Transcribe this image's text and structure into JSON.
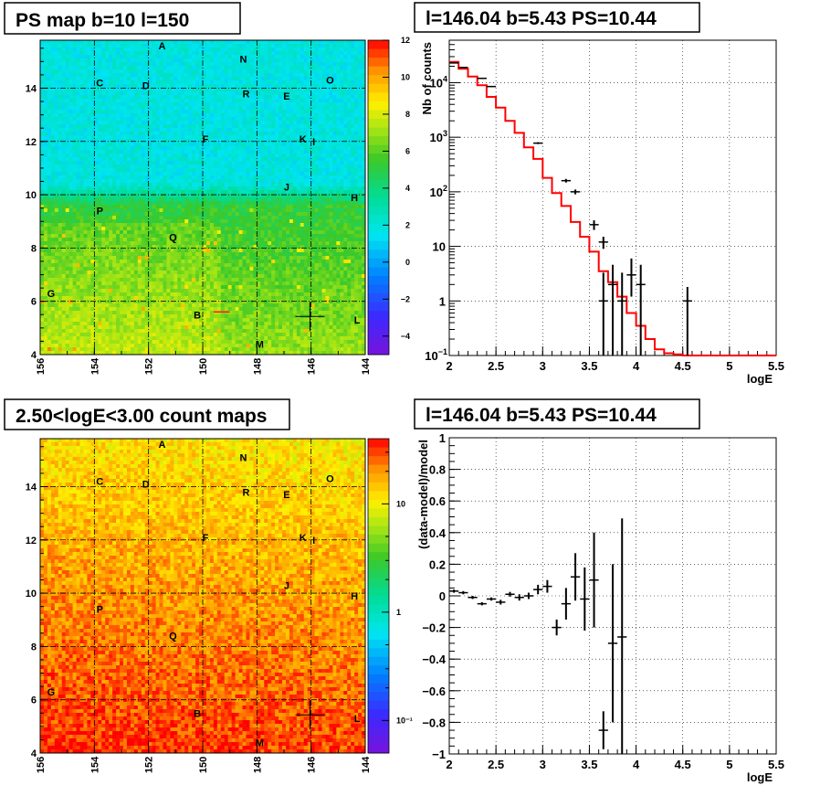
{
  "chart_data": [
    {
      "type": "heatmap",
      "title": "PS map b=10 l=150",
      "xlim": [
        156,
        144
      ],
      "ylim": [
        4,
        15.8
      ],
      "x_ticks": [
        "156",
        "154",
        "152",
        "150",
        "148",
        "146",
        "144"
      ],
      "y_ticks": [
        "4",
        "6",
        "8",
        "10",
        "12",
        "14"
      ],
      "colorbar": {
        "scale": "linear",
        "range": [
          -5,
          12
        ],
        "ticks": [
          "12",
          "10",
          "8",
          "6",
          "4",
          "2",
          "0",
          "−2",
          "−4"
        ]
      },
      "grid": "dash-dot",
      "source_labels": [
        {
          "name": "A",
          "l": 151.5,
          "b": 15.6
        },
        {
          "name": "N",
          "l": 148.5,
          "b": 15.1
        },
        {
          "name": "O",
          "l": 145.3,
          "b": 14.3
        },
        {
          "name": "C",
          "l": 153.8,
          "b": 14.2
        },
        {
          "name": "D",
          "l": 152.1,
          "b": 14.1
        },
        {
          "name": "R",
          "l": 148.4,
          "b": 13.8
        },
        {
          "name": "E",
          "l": 146.9,
          "b": 13.7
        },
        {
          "name": "F",
          "l": 149.9,
          "b": 12.1
        },
        {
          "name": "K",
          "l": 146.3,
          "b": 12.1
        },
        {
          "name": "I",
          "l": 145.9,
          "b": 12.0
        },
        {
          "name": "J",
          "l": 146.9,
          "b": 10.3
        },
        {
          "name": "H",
          "l": 144.4,
          "b": 9.9
        },
        {
          "name": "P",
          "l": 153.8,
          "b": 9.4
        },
        {
          "name": "Q",
          "l": 151.1,
          "b": 8.4
        },
        {
          "name": "G",
          "l": 155.6,
          "b": 6.3
        },
        {
          "name": "B",
          "l": 150.2,
          "b": 5.5
        },
        {
          "name": "L",
          "l": 144.3,
          "b": 5.3
        },
        {
          "name": "M",
          "l": 147.9,
          "b": 4.4
        }
      ],
      "marker": {
        "l": 146.04,
        "b": 5.43
      }
    },
    {
      "type": "line",
      "title": "l=146.04 b=5.43 PS=10.44",
      "xlabel": "logE",
      "ylabel": "Nb of counts",
      "xlim": [
        2,
        5.5
      ],
      "ylim": [
        0.1,
        60000
      ],
      "yscale": "log",
      "x_ticks": [
        "2",
        "2.5",
        "3",
        "3.5",
        "4",
        "4.5",
        "5",
        "5.5"
      ],
      "grid": true,
      "series": [
        {
          "type": "step",
          "color": "#ff0000",
          "x": [
            2.0,
            2.1,
            2.2,
            2.3,
            2.4,
            2.5,
            2.6,
            2.7,
            2.8,
            2.9,
            3.0,
            3.1,
            3.2,
            3.3,
            3.4,
            3.5,
            3.6,
            3.7,
            3.8,
            3.9,
            4.0,
            4.1,
            4.2,
            4.3,
            4.4,
            4.5,
            5.5
          ],
          "values": [
            24000,
            18000,
            13000,
            9000,
            5500,
            3500,
            2000,
            1200,
            650,
            400,
            180,
            95,
            55,
            28,
            15,
            8,
            3.5,
            2.2,
            1.2,
            0.6,
            0.35,
            0.2,
            0.13,
            0.11,
            0.105,
            0.1,
            0.1
          ]
        },
        {
          "type": "errorbar",
          "color": "#000000",
          "points": [
            {
              "x": 2.05,
              "y": 23000,
              "lo": 22600,
              "hi": 23400
            },
            {
              "x": 2.15,
              "y": 19000,
              "lo": 18700,
              "hi": 19300
            },
            {
              "x": 2.35,
              "y": 12000,
              "lo": 11800,
              "hi": 12200
            },
            {
              "x": 2.45,
              "y": 8500,
              "lo": 8300,
              "hi": 8700
            },
            {
              "x": 2.95,
              "y": 780,
              "lo": 750,
              "hi": 810
            },
            {
              "x": 3.25,
              "y": 160,
              "lo": 148,
              "hi": 172
            },
            {
              "x": 3.35,
              "y": 100,
              "lo": 90,
              "hi": 110
            },
            {
              "x": 3.55,
              "y": 25,
              "lo": 20,
              "hi": 30
            },
            {
              "x": 3.65,
              "y": 12,
              "lo": 9,
              "hi": 15
            },
            {
              "x": 3.65,
              "y": 1,
              "lo": 0.1,
              "hi": 3.3
            },
            {
              "x": 3.75,
              "y": 2,
              "lo": 0.1,
              "hi": 4.6
            },
            {
              "x": 3.85,
              "y": 1,
              "lo": 0.1,
              "hi": 3.3
            },
            {
              "x": 3.95,
              "y": 3,
              "lo": 1.2,
              "hi": 6
            },
            {
              "x": 4.05,
              "y": 2,
              "lo": 0.1,
              "hi": 4.6
            },
            {
              "x": 4.55,
              "y": 1,
              "lo": 0.1,
              "hi": 1.8
            }
          ]
        }
      ]
    },
    {
      "type": "heatmap",
      "title": "2.50<logE<3.00 count maps",
      "xlim": [
        156,
        144
      ],
      "ylim": [
        4,
        15.8
      ],
      "x_ticks": [
        "156",
        "154",
        "152",
        "150",
        "148",
        "146",
        "144"
      ],
      "y_ticks": [
        "4",
        "6",
        "8",
        "10",
        "12",
        "14"
      ],
      "colorbar": {
        "scale": "log",
        "range": [
          0.05,
          40
        ],
        "ticks": [
          "10",
          "1",
          "10⁻¹"
        ]
      },
      "grid": "dash-dot"
    },
    {
      "type": "scatter",
      "title": "l=146.04 b=5.43 PS=10.44",
      "xlabel": "logE",
      "ylabel": "(data-model)/model",
      "xlim": [
        2,
        5.5
      ],
      "ylim": [
        -1,
        1
      ],
      "x_ticks": [
        "2",
        "2.5",
        "3",
        "3.5",
        "4",
        "4.5",
        "5",
        "5.5"
      ],
      "y_ticks": [
        "1",
        "0.8",
        "0.6",
        "0.4",
        "0.2",
        "0",
        "−0.2",
        "−0.4",
        "−0.6",
        "−0.8",
        "−1"
      ],
      "grid": true,
      "points": [
        {
          "x": 2.05,
          "y": 0.03,
          "err": 0.01
        },
        {
          "x": 2.15,
          "y": 0.02,
          "err": 0.01
        },
        {
          "x": 2.25,
          "y": -0.01,
          "err": 0.01
        },
        {
          "x": 2.35,
          "y": -0.05,
          "err": 0.01
        },
        {
          "x": 2.45,
          "y": -0.02,
          "err": 0.01
        },
        {
          "x": 2.55,
          "y": -0.04,
          "err": 0.015
        },
        {
          "x": 2.65,
          "y": 0.01,
          "err": 0.015
        },
        {
          "x": 2.75,
          "y": -0.01,
          "err": 0.02
        },
        {
          "x": 2.85,
          "y": 0.0,
          "err": 0.02
        },
        {
          "x": 2.95,
          "y": 0.04,
          "err": 0.03
        },
        {
          "x": 3.05,
          "y": 0.06,
          "err": 0.04
        },
        {
          "x": 3.15,
          "y": -0.2,
          "err": 0.05
        },
        {
          "x": 3.25,
          "y": -0.05,
          "err": 0.1
        },
        {
          "x": 3.35,
          "y": 0.12,
          "err": 0.15
        },
        {
          "x": 3.45,
          "y": -0.02,
          "err": 0.2
        },
        {
          "x": 3.55,
          "y": 0.1,
          "err": 0.3
        },
        {
          "x": 3.65,
          "y": -0.85,
          "err": 0.12
        },
        {
          "x": 3.75,
          "y": -0.3,
          "err": 0.5
        },
        {
          "x": 3.85,
          "y": -0.26,
          "err": 0.75
        }
      ]
    }
  ]
}
